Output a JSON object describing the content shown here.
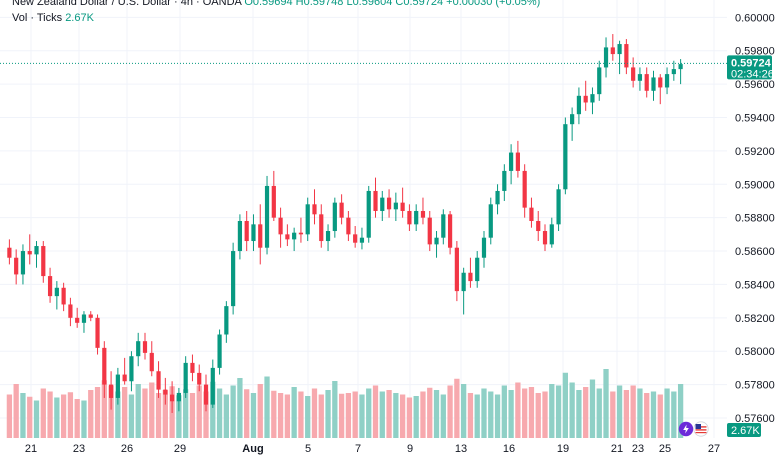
{
  "legend": {
    "symbol": "New Zealand Dollar / U.S. Dollar · 4h · OANDA",
    "ohlc": "O0.59694 H0.59748 L0.59604 C0.59724 +0.00030 (+0.05%)",
    "vol_label": "Vol · Ticks",
    "vol_value": "2.67K"
  },
  "colors": {
    "up": "#089981",
    "down": "#f23645",
    "vol_up": "#8fd0c6",
    "vol_down": "#f7a9ae",
    "grid": "#f0f3fa",
    "price_line": "#089981",
    "axis_text": "#131722"
  },
  "price_badge": {
    "price": "0.59724",
    "countdown": "02:34:26"
  },
  "volume_badge": "2.67K",
  "chart_data": {
    "type": "candlestick",
    "title": "",
    "y_axis": {
      "ticks": [
        "0.60000",
        "0.59800",
        "0.59600",
        "0.59400",
        "0.59200",
        "0.59000",
        "0.58800",
        "0.58600",
        "0.58400",
        "0.58200",
        "0.58000",
        "0.57800",
        "0.57600"
      ],
      "range": [
        0.5748,
        0.6008
      ]
    },
    "x_axis": {
      "ticks": [
        "21",
        "23",
        "26",
        "29",
        "Aug",
        "5",
        "7",
        "9",
        "13",
        "16",
        "19",
        "21",
        "23",
        "25",
        "27"
      ]
    },
    "grid": true,
    "current_price": 0.59724,
    "ohlc": [
      [
        0.5862,
        0.5867,
        0.5852,
        0.5856
      ],
      [
        0.5856,
        0.5861,
        0.584,
        0.5846
      ],
      [
        0.5846,
        0.5864,
        0.584,
        0.586
      ],
      [
        0.586,
        0.587,
        0.5852,
        0.5858
      ],
      [
        0.5858,
        0.5866,
        0.585,
        0.5863
      ],
      [
        0.5863,
        0.5866,
        0.5841,
        0.5845
      ],
      [
        0.5845,
        0.585,
        0.5829,
        0.5833
      ],
      [
        0.5833,
        0.5842,
        0.5825,
        0.5838
      ],
      [
        0.5838,
        0.5841,
        0.5824,
        0.5828
      ],
      [
        0.5828,
        0.5832,
        0.5815,
        0.582
      ],
      [
        0.582,
        0.5826,
        0.5814,
        0.5817
      ],
      [
        0.5817,
        0.5824,
        0.5811,
        0.5822
      ],
      [
        0.5822,
        0.5824,
        0.5818,
        0.582
      ],
      [
        0.582,
        0.5822,
        0.5798,
        0.5802
      ],
      [
        0.5802,
        0.5806,
        0.5772,
        0.578
      ],
      [
        0.578,
        0.5788,
        0.5765,
        0.5772
      ],
      [
        0.5772,
        0.579,
        0.5768,
        0.5786
      ],
      [
        0.5786,
        0.5796,
        0.578,
        0.5782
      ],
      [
        0.5782,
        0.58,
        0.5776,
        0.5797
      ],
      [
        0.5797,
        0.5811,
        0.5791,
        0.5806
      ],
      [
        0.5806,
        0.5811,
        0.5795,
        0.5799
      ],
      [
        0.5799,
        0.5806,
        0.5785,
        0.5788
      ],
      [
        0.5788,
        0.5794,
        0.5772,
        0.5777
      ],
      [
        0.5777,
        0.5784,
        0.5768,
        0.5774
      ],
      [
        0.5774,
        0.5782,
        0.5763,
        0.577
      ],
      [
        0.577,
        0.5778,
        0.5764,
        0.5775
      ],
      [
        0.5775,
        0.5797,
        0.5772,
        0.5793
      ],
      [
        0.5793,
        0.5798,
        0.5782,
        0.5787
      ],
      [
        0.5787,
        0.5792,
        0.5776,
        0.578
      ],
      [
        0.578,
        0.5786,
        0.5764,
        0.5768
      ],
      [
        0.5768,
        0.5795,
        0.5766,
        0.579
      ],
      [
        0.579,
        0.5813,
        0.5786,
        0.581
      ],
      [
        0.581,
        0.583,
        0.5805,
        0.5827
      ],
      [
        0.5827,
        0.5865,
        0.5822,
        0.586
      ],
      [
        0.586,
        0.5882,
        0.5855,
        0.5878
      ],
      [
        0.5878,
        0.5884,
        0.586,
        0.5866
      ],
      [
        0.5866,
        0.5882,
        0.586,
        0.5876
      ],
      [
        0.5876,
        0.5888,
        0.5852,
        0.5862
      ],
      [
        0.5862,
        0.5905,
        0.5858,
        0.5899
      ],
      [
        0.5899,
        0.5908,
        0.5878,
        0.588
      ],
      [
        0.588,
        0.5886,
        0.5862,
        0.587
      ],
      [
        0.587,
        0.5876,
        0.5863,
        0.5867
      ],
      [
        0.5867,
        0.5874,
        0.586,
        0.5871
      ],
      [
        0.5871,
        0.588,
        0.5865,
        0.587
      ],
      [
        0.587,
        0.5892,
        0.5866,
        0.5888
      ],
      [
        0.5888,
        0.5897,
        0.5876,
        0.5882
      ],
      [
        0.5882,
        0.5888,
        0.5862,
        0.5866
      ],
      [
        0.5866,
        0.5876,
        0.586,
        0.5872
      ],
      [
        0.5872,
        0.5892,
        0.5868,
        0.5889
      ],
      [
        0.5889,
        0.5894,
        0.5876,
        0.588
      ],
      [
        0.588,
        0.5884,
        0.5866,
        0.587
      ],
      [
        0.587,
        0.5875,
        0.5862,
        0.5865
      ],
      [
        0.5865,
        0.5874,
        0.5861,
        0.5868
      ],
      [
        0.5868,
        0.5899,
        0.5865,
        0.5896
      ],
      [
        0.5896,
        0.5904,
        0.588,
        0.5884
      ],
      [
        0.5884,
        0.5896,
        0.5878,
        0.5892
      ],
      [
        0.5892,
        0.5897,
        0.588,
        0.5885
      ],
      [
        0.5885,
        0.5895,
        0.5878,
        0.5889
      ],
      [
        0.5889,
        0.5898,
        0.588,
        0.5884
      ],
      [
        0.5884,
        0.5888,
        0.5872,
        0.5876
      ],
      [
        0.5876,
        0.5888,
        0.5872,
        0.5884
      ],
      [
        0.5884,
        0.5892,
        0.5876,
        0.588
      ],
      [
        0.588,
        0.5884,
        0.586,
        0.5864
      ],
      [
        0.5864,
        0.5872,
        0.5856,
        0.5868
      ],
      [
        0.5868,
        0.5885,
        0.5864,
        0.5882
      ],
      [
        0.5882,
        0.5884,
        0.5858,
        0.5862
      ],
      [
        0.5862,
        0.5866,
        0.583,
        0.5836
      ],
      [
        0.5836,
        0.585,
        0.5822,
        0.5847
      ],
      [
        0.5847,
        0.5856,
        0.5838,
        0.5842
      ],
      [
        0.5842,
        0.586,
        0.5838,
        0.5856
      ],
      [
        0.5856,
        0.5872,
        0.585,
        0.5868
      ],
      [
        0.5868,
        0.5892,
        0.5864,
        0.5888
      ],
      [
        0.5888,
        0.59,
        0.5882,
        0.5896
      ],
      [
        0.5896,
        0.5912,
        0.589,
        0.5908
      ],
      [
        0.5908,
        0.5924,
        0.59,
        0.5919
      ],
      [
        0.5919,
        0.5926,
        0.5904,
        0.5908
      ],
      [
        0.5908,
        0.5912,
        0.588,
        0.5886
      ],
      [
        0.5886,
        0.5892,
        0.5874,
        0.5878
      ],
      [
        0.5878,
        0.5884,
        0.5866,
        0.5872
      ],
      [
        0.5872,
        0.5876,
        0.586,
        0.5864
      ],
      [
        0.5864,
        0.588,
        0.5862,
        0.5876
      ],
      [
        0.5876,
        0.59,
        0.5872,
        0.5897
      ],
      [
        0.5897,
        0.594,
        0.5894,
        0.5936
      ],
      [
        0.5936,
        0.5946,
        0.5926,
        0.5942
      ],
      [
        0.5942,
        0.5958,
        0.5936,
        0.5953
      ],
      [
        0.5953,
        0.5962,
        0.5944,
        0.5949
      ],
      [
        0.5949,
        0.5958,
        0.5942,
        0.5954
      ],
      [
        0.5954,
        0.5974,
        0.595,
        0.597
      ],
      [
        0.597,
        0.5988,
        0.5964,
        0.5982
      ],
      [
        0.5982,
        0.599,
        0.5974,
        0.5978
      ],
      [
        0.5978,
        0.5986,
        0.5966,
        0.5984
      ],
      [
        0.5984,
        0.5987,
        0.5966,
        0.597
      ],
      [
        0.597,
        0.5976,
        0.5958,
        0.5962
      ],
      [
        0.5962,
        0.597,
        0.5956,
        0.5966
      ],
      [
        0.5966,
        0.597,
        0.5952,
        0.5956
      ],
      [
        0.5956,
        0.5968,
        0.595,
        0.5964
      ],
      [
        0.5964,
        0.5966,
        0.5948,
        0.5958
      ],
      [
        0.5958,
        0.597,
        0.5954,
        0.5966
      ],
      [
        0.5966,
        0.5974,
        0.5962,
        0.5969
      ],
      [
        0.5969,
        0.5975,
        0.596,
        0.5972
      ]
    ],
    "volume": [
      58,
      72,
      60,
      55,
      50,
      66,
      62,
      54,
      58,
      61,
      52,
      50,
      64,
      68,
      77,
      70,
      62,
      68,
      58,
      72,
      66,
      74,
      60,
      64,
      69,
      57,
      65,
      60,
      70,
      62,
      75,
      66,
      58,
      70,
      80,
      65,
      60,
      72,
      82,
      63,
      60,
      58,
      68,
      62,
      56,
      66,
      58,
      64,
      76,
      59,
      60,
      62,
      58,
      66,
      70,
      62,
      64,
      60,
      58,
      54,
      56,
      62,
      67,
      64,
      58,
      70,
      79,
      72,
      60,
      58,
      66,
      62,
      58,
      70,
      64,
      74,
      66,
      68,
      60,
      62,
      72,
      70,
      87,
      74,
      64,
      68,
      78,
      66,
      92,
      62,
      70,
      64,
      70,
      66,
      60,
      62,
      58,
      66,
      62,
      72
    ],
    "volume_max": 100
  }
}
